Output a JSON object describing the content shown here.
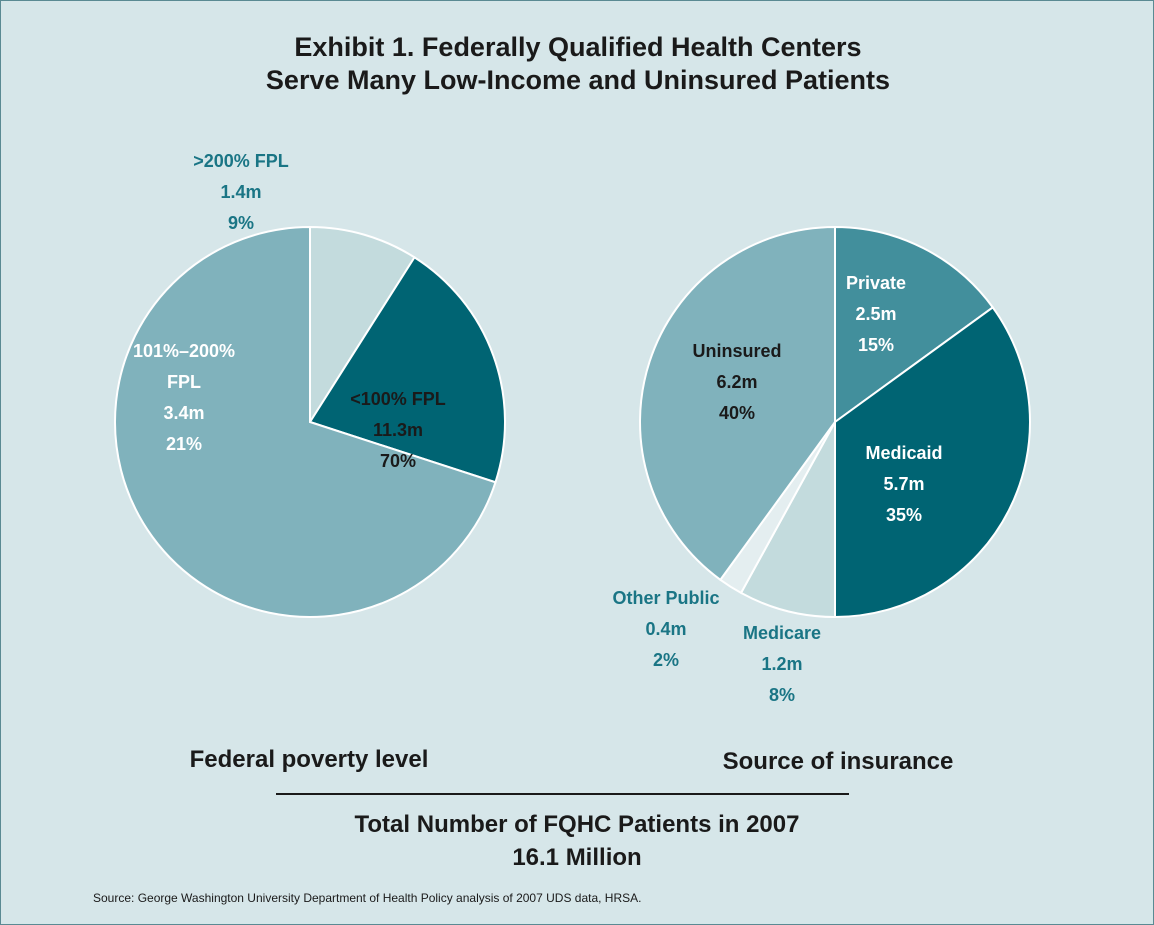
{
  "title": [
    "Exhibit 1. Federally Qualified Health Centers",
    "Serve Many Low-Income and Uninsured Patients"
  ],
  "chart_data": [
    {
      "type": "pie",
      "title": "Federal poverty level",
      "categories": [
        ">200% FPL",
        "101%–200% FPL",
        "<100% FPL"
      ],
      "values": [
        9,
        21,
        70
      ],
      "value_labels": [
        "9%",
        "21%",
        "70%"
      ],
      "counts": [
        1.4,
        3.4,
        11.3
      ],
      "count_labels": [
        "1.4m",
        "3.4m",
        "11.3m"
      ],
      "colors": [
        "#c3dbdd",
        "#006473",
        "#80b2bc"
      ]
    },
    {
      "type": "pie",
      "title": "Source of insurance",
      "categories": [
        "Private",
        "Medicaid",
        "Medicare",
        "Other Public",
        "Uninsured"
      ],
      "values": [
        15,
        35,
        8,
        2,
        40
      ],
      "value_labels": [
        "15%",
        "35%",
        "8%",
        "2%",
        "40%"
      ],
      "counts": [
        2.5,
        5.7,
        1.2,
        0.4,
        6.2
      ],
      "count_labels": [
        "2.5m",
        "5.7m",
        "1.2m",
        "0.4m",
        "6.2m"
      ],
      "colors": [
        "#428f9c",
        "#006473",
        "#c3dbdd",
        "#e4eef0",
        "#80b2bc"
      ]
    }
  ],
  "total_heading": "Total Number of FQHC Patients in 2007",
  "total": {
    "value": 16.1,
    "label": "16.1 Million"
  },
  "source": "Source: George Washington University Department of Health Policy analysis of 2007 UDS data, HRSA."
}
